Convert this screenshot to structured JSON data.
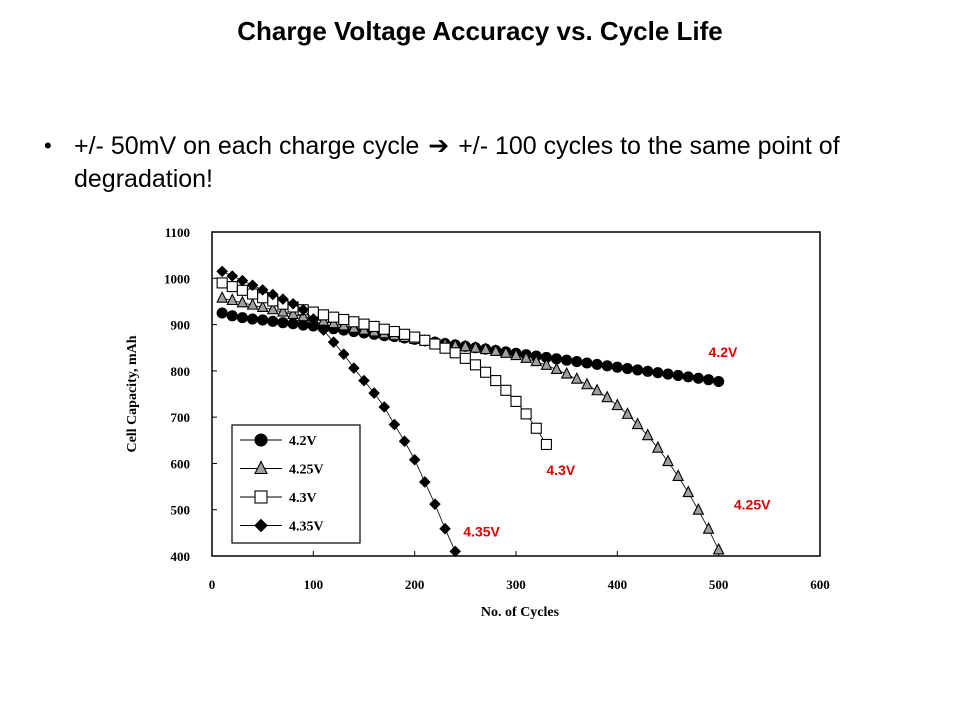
{
  "slide": {
    "title": "Charge Voltage Accuracy vs. Cycle Life",
    "bullet": {
      "before_arrow": "+/- 50mV on each charge cycle",
      "arrow_icon": "right-arrow-icon",
      "after_arrow": "+/- 100 cycles to the same point of degradation!"
    }
  },
  "chart_data": {
    "type": "line",
    "title": "",
    "xlabel": "No. of Cycles",
    "ylabel": "Cell Capacity, mAh",
    "xlim": [
      0,
      600
    ],
    "ylim": [
      400,
      1100
    ],
    "xticks": [
      "0",
      "100",
      "200",
      "300",
      "400",
      "500",
      "600"
    ],
    "yticks": [
      "400",
      "500",
      "600",
      "700",
      "800",
      "900",
      "1000",
      "1100"
    ],
    "legend_position": "bottom-left",
    "series": [
      {
        "name": "4.2V",
        "marker": "circle",
        "fill": "#000000",
        "label_color": "#e00000",
        "annotation": "4.2V",
        "x": [
          10,
          20,
          30,
          40,
          50,
          60,
          70,
          80,
          90,
          100,
          110,
          120,
          130,
          140,
          150,
          160,
          170,
          180,
          190,
          200,
          210,
          220,
          230,
          240,
          250,
          260,
          270,
          280,
          290,
          300,
          310,
          320,
          330,
          340,
          350,
          360,
          370,
          380,
          390,
          400,
          410,
          420,
          430,
          440,
          450,
          460,
          470,
          480,
          490,
          500
        ],
        "y": [
          925,
          919,
          915,
          912,
          910,
          907,
          904,
          902,
          899,
          897,
          894,
          891,
          888,
          885,
          882,
          879,
          876,
          874,
          871,
          868,
          865,
          862,
          859,
          856,
          853,
          850,
          847,
          844,
          841,
          838,
          835,
          832,
          829,
          826,
          823,
          820,
          817,
          814,
          811,
          808,
          805,
          802,
          799,
          796,
          793,
          790,
          787,
          784,
          781,
          777
        ]
      },
      {
        "name": "4.25V",
        "marker": "triangle",
        "fill": "#a0a0a0",
        "label_color": "#e00000",
        "annotation": "4.25V",
        "x": [
          10,
          20,
          30,
          40,
          50,
          60,
          70,
          80,
          90,
          100,
          110,
          120,
          130,
          140,
          150,
          160,
          170,
          180,
          190,
          200,
          210,
          220,
          230,
          240,
          250,
          260,
          270,
          280,
          290,
          300,
          310,
          320,
          330,
          340,
          350,
          360,
          370,
          380,
          390,
          400,
          410,
          420,
          430,
          440,
          450,
          460,
          470,
          480,
          490,
          500
        ],
        "y": [
          957,
          952,
          947,
          942,
          937,
          932,
          927,
          922,
          917,
          912,
          907,
          902,
          897,
          892,
          888,
          884,
          880,
          876,
          872,
          868,
          864,
          860,
          857,
          854,
          852,
          849,
          846,
          842,
          838,
          833,
          827,
          820,
          812,
          803,
          793,
          782,
          770,
          757,
          742,
          725,
          706,
          684,
          660,
          633,
          604,
          572,
          537,
          499,
          458,
          413
        ]
      },
      {
        "name": "4.3V",
        "marker": "square",
        "fill": "#ffffff",
        "label_color": "#e00000",
        "annotation": "4.3V",
        "x": [
          10,
          20,
          30,
          40,
          50,
          60,
          70,
          80,
          90,
          100,
          110,
          120,
          130,
          140,
          150,
          160,
          170,
          180,
          190,
          200,
          210,
          220,
          230,
          240,
          250,
          260,
          270,
          280,
          290,
          300,
          310,
          320,
          330
        ],
        "y": [
          990,
          982,
          974,
          966,
          958,
          951,
          944,
          938,
          932,
          927,
          921,
          916,
          911,
          906,
          901,
          896,
          890,
          885,
          879,
          873,
          866,
          858,
          849,
          839,
          827,
          813,
          797,
          779,
          758,
          734,
          707,
          676,
          641
        ]
      },
      {
        "name": "4.35V",
        "marker": "diamond",
        "fill": "#000000",
        "label_color": "#e00000",
        "annotation": "4.35V",
        "x": [
          10,
          20,
          30,
          40,
          50,
          60,
          70,
          80,
          90,
          100,
          110,
          120,
          130,
          140,
          150,
          160,
          170,
          180,
          190,
          200,
          210,
          220,
          230,
          240
        ],
        "y": [
          1015,
          1005,
          995,
          985,
          975,
          965,
          955,
          945,
          932,
          912,
          888,
          862,
          836,
          806,
          779,
          752,
          722,
          684,
          648,
          608,
          560,
          512,
          459,
          410
        ]
      }
    ]
  }
}
